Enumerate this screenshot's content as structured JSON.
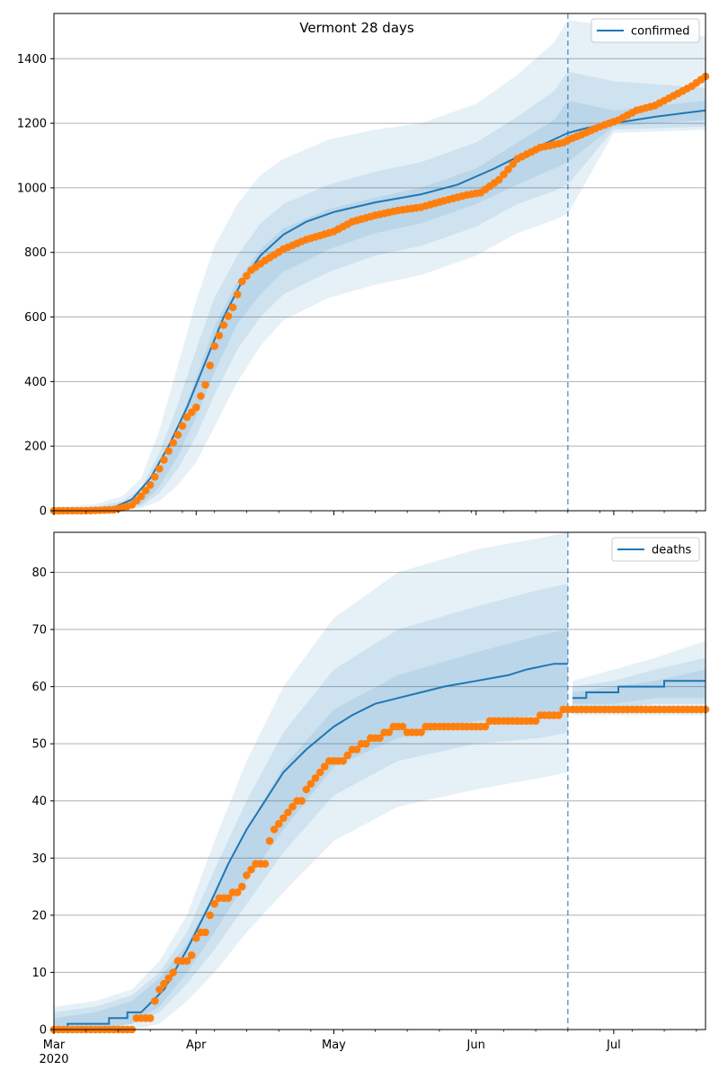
{
  "title": "Vermont 28 days",
  "colors": {
    "model": "#1f77b4",
    "observed": "#ff7f0e",
    "band": "#1f77b4",
    "grid": "#b0b0b0"
  },
  "chart_data": [
    {
      "type": "line",
      "name": "confirmed-panel",
      "title": "Vermont 28 days",
      "legend": {
        "label": "confirmed",
        "placement": "top-right"
      },
      "x_type": "date",
      "xlim": [
        "2020-03-01",
        "2020-07-21"
      ],
      "ylim": [
        0,
        1540
      ],
      "yticks": [
        0,
        200,
        400,
        600,
        800,
        1000,
        1200,
        1400
      ],
      "grid": "horizontal",
      "forecast_start": "2020-06-21",
      "model_line": {
        "dates": [
          "2020-03-01",
          "2020-03-05",
          "2020-03-10",
          "2020-03-14",
          "2020-03-18",
          "2020-03-22",
          "2020-03-26",
          "2020-03-30",
          "2020-04-03",
          "2020-04-07",
          "2020-04-11",
          "2020-04-15",
          "2020-04-20",
          "2020-04-25",
          "2020-05-01",
          "2020-05-10",
          "2020-05-20",
          "2020-05-28",
          "2020-06-05",
          "2020-06-12",
          "2020-06-18",
          "2020-06-21",
          "2020-06-25",
          "2020-07-01",
          "2020-07-10",
          "2020-07-21"
        ],
        "values": [
          0,
          1,
          3,
          10,
          35,
          100,
          200,
          320,
          460,
          600,
          710,
          790,
          855,
          895,
          925,
          955,
          980,
          1010,
          1060,
          1110,
          1150,
          1170,
          1185,
          1200,
          1220,
          1240
        ]
      },
      "bands": [
        {
          "level": "outer",
          "dates": [
            "2020-03-01",
            "2020-03-10",
            "2020-03-16",
            "2020-03-20",
            "2020-03-24",
            "2020-03-28",
            "2020-04-01",
            "2020-04-05",
            "2020-04-10",
            "2020-04-15",
            "2020-04-20",
            "2020-04-30",
            "2020-05-10",
            "2020-05-20",
            "2020-06-01",
            "2020-06-10",
            "2020-06-18",
            "2020-06-21",
            "2020-07-01",
            "2020-07-21"
          ],
          "upper": [
            10,
            20,
            45,
            100,
            250,
            450,
            650,
            820,
            950,
            1040,
            1090,
            1150,
            1180,
            1200,
            1260,
            1350,
            1450,
            1520,
            1500,
            1470
          ],
          "lower": [
            0,
            0,
            2,
            8,
            30,
            80,
            150,
            260,
            400,
            510,
            590,
            660,
            700,
            730,
            790,
            860,
            900,
            920,
            1170,
            1180
          ]
        },
        {
          "level": "middle",
          "dates": [
            "2020-03-01",
            "2020-03-10",
            "2020-03-16",
            "2020-03-20",
            "2020-03-24",
            "2020-03-28",
            "2020-04-01",
            "2020-04-05",
            "2020-04-10",
            "2020-04-15",
            "2020-04-20",
            "2020-04-30",
            "2020-05-10",
            "2020-05-20",
            "2020-06-01",
            "2020-06-10",
            "2020-06-18",
            "2020-06-21",
            "2020-07-01",
            "2020-07-21"
          ],
          "upper": [
            5,
            12,
            30,
            70,
            180,
            330,
            500,
            660,
            790,
            890,
            950,
            1010,
            1050,
            1080,
            1140,
            1220,
            1300,
            1360,
            1330,
            1310
          ],
          "lower": [
            0,
            0,
            4,
            14,
            55,
            130,
            230,
            360,
            500,
            600,
            670,
            740,
            790,
            820,
            880,
            950,
            990,
            1010,
            1180,
            1190
          ]
        },
        {
          "level": "inner",
          "dates": [
            "2020-03-01",
            "2020-03-10",
            "2020-03-16",
            "2020-03-20",
            "2020-03-24",
            "2020-03-28",
            "2020-04-01",
            "2020-04-05",
            "2020-04-10",
            "2020-04-15",
            "2020-04-20",
            "2020-04-30",
            "2020-05-10",
            "2020-05-20",
            "2020-06-01",
            "2020-06-10",
            "2020-06-18",
            "2020-06-21",
            "2020-07-01",
            "2020-07-21"
          ],
          "upper": [
            3,
            8,
            20,
            50,
            130,
            260,
            410,
            570,
            710,
            810,
            875,
            935,
            970,
            1000,
            1060,
            1140,
            1210,
            1270,
            1240,
            1270
          ],
          "lower": [
            0,
            1,
            6,
            20,
            75,
            170,
            290,
            430,
            580,
            670,
            740,
            810,
            860,
            890,
            950,
            1010,
            1060,
            1080,
            1190,
            1210
          ]
        }
      ],
      "observed": {
        "dates": [
          "2020-03-01",
          "2020-03-08",
          "2020-03-14",
          "2020-03-16",
          "2020-03-18",
          "2020-03-20",
          "2020-03-22",
          "2020-03-24",
          "2020-03-26",
          "2020-03-28",
          "2020-03-30",
          "2020-04-01",
          "2020-04-03",
          "2020-04-05",
          "2020-04-07",
          "2020-04-09",
          "2020-04-11",
          "2020-04-13",
          "2020-04-16",
          "2020-04-20",
          "2020-04-25",
          "2020-05-01",
          "2020-05-05",
          "2020-05-10",
          "2020-05-15",
          "2020-05-20",
          "2020-05-25",
          "2020-05-30",
          "2020-06-02",
          "2020-06-06",
          "2020-06-10",
          "2020-06-15",
          "2020-06-20",
          "2020-06-21",
          "2020-06-24",
          "2020-06-28",
          "2020-07-02",
          "2020-07-06",
          "2020-07-10",
          "2020-07-14",
          "2020-07-18",
          "2020-07-21"
        ],
        "values": [
          0,
          0,
          3,
          10,
          18,
          45,
          80,
          130,
          185,
          235,
          290,
          320,
          390,
          510,
          575,
          630,
          710,
          745,
          775,
          810,
          840,
          865,
          895,
          915,
          930,
          940,
          960,
          978,
          985,
          1025,
          1090,
          1125,
          1140,
          1148,
          1165,
          1190,
          1210,
          1240,
          1255,
          1285,
          1315,
          1345
        ]
      }
    },
    {
      "type": "line",
      "name": "deaths-panel",
      "legend": {
        "label": "deaths",
        "placement": "top-right"
      },
      "x_type": "date",
      "xlim": [
        "2020-03-01",
        "2020-07-21"
      ],
      "ylim": [
        0,
        87
      ],
      "yticks": [
        0,
        10,
        20,
        30,
        40,
        50,
        60,
        70,
        80
      ],
      "xticks": [
        "Mar",
        "Apr",
        "May",
        "Jun",
        "Jul"
      ],
      "xtick_dates": [
        "2020-03-01",
        "2020-04-01",
        "2020-05-01",
        "2020-06-01",
        "2020-07-01"
      ],
      "year_label": "2020",
      "grid": "horizontal",
      "forecast_start": "2020-06-21",
      "model_line": {
        "dates": [
          "2020-03-01",
          "2020-03-04",
          "2020-03-04",
          "2020-03-13",
          "2020-03-13",
          "2020-03-17",
          "2020-03-17",
          "2020-03-20",
          "2020-03-25",
          "2020-03-30",
          "2020-04-04",
          "2020-04-08",
          "2020-04-12",
          "2020-04-16",
          "2020-04-20",
          "2020-04-25",
          "2020-05-01",
          "2020-05-05",
          "2020-05-10",
          "2020-05-15",
          "2020-05-20",
          "2020-05-25",
          "2020-06-01",
          "2020-06-08",
          "2020-06-12",
          "2020-06-18",
          "2020-06-21"
        ],
        "values": [
          0,
          0,
          1,
          1,
          2,
          2,
          3,
          3,
          7,
          14,
          22,
          29,
          35,
          40,
          45,
          49,
          53,
          55,
          57,
          58,
          59,
          60,
          61,
          62,
          63,
          64,
          64
        ]
      },
      "model_line_forecast": {
        "dates": [
          "2020-06-22",
          "2020-06-25",
          "2020-06-25",
          "2020-07-02",
          "2020-07-02",
          "2020-07-12",
          "2020-07-12",
          "2020-07-21"
        ],
        "values": [
          58,
          58,
          59,
          59,
          60,
          60,
          61,
          61
        ]
      },
      "bands": [
        {
          "level": "outer",
          "dates": [
            "2020-03-01",
            "2020-03-10",
            "2020-03-18",
            "2020-03-24",
            "2020-03-30",
            "2020-04-05",
            "2020-04-12",
            "2020-04-20",
            "2020-05-01",
            "2020-05-15",
            "2020-06-01",
            "2020-06-15",
            "2020-06-21"
          ],
          "upper": [
            4,
            5,
            7,
            12,
            20,
            33,
            47,
            60,
            72,
            80,
            84,
            86,
            87
          ],
          "lower": [
            0,
            0,
            0,
            1,
            5,
            10,
            17,
            24,
            33,
            39,
            42,
            44,
            45
          ]
        },
        {
          "level": "middle",
          "dates": [
            "2020-03-01",
            "2020-03-10",
            "2020-03-18",
            "2020-03-24",
            "2020-03-30",
            "2020-04-05",
            "2020-04-12",
            "2020-04-20",
            "2020-05-01",
            "2020-05-15",
            "2020-06-01",
            "2020-06-15",
            "2020-06-21"
          ],
          "upper": [
            3,
            4,
            6,
            10,
            17,
            28,
            40,
            52,
            63,
            70,
            74,
            77,
            78
          ],
          "lower": [
            0,
            0,
            1,
            3,
            8,
            14,
            22,
            31,
            41,
            47,
            50,
            51,
            52
          ]
        },
        {
          "level": "inner",
          "dates": [
            "2020-03-01",
            "2020-03-10",
            "2020-03-18",
            "2020-03-24",
            "2020-03-30",
            "2020-04-05",
            "2020-04-12",
            "2020-04-20",
            "2020-05-01",
            "2020-05-15",
            "2020-06-01",
            "2020-06-15",
            "2020-06-21"
          ],
          "upper": [
            2,
            3,
            5,
            9,
            15,
            24,
            35,
            46,
            56,
            62,
            66,
            69,
            70
          ],
          "lower": [
            0,
            0,
            1,
            4,
            10,
            17,
            26,
            35,
            46,
            51,
            54,
            55,
            56
          ]
        },
        {
          "level": "outer-forecast",
          "dates": [
            "2020-06-22",
            "2020-07-01",
            "2020-07-10",
            "2020-07-21"
          ],
          "upper": [
            61,
            63,
            65,
            68
          ],
          "lower": [
            55,
            55,
            55,
            55
          ]
        },
        {
          "level": "middle-forecast",
          "dates": [
            "2020-06-22",
            "2020-07-01",
            "2020-07-10",
            "2020-07-21"
          ],
          "upper": [
            60,
            61,
            63,
            65
          ],
          "lower": [
            56,
            56,
            57,
            57
          ]
        },
        {
          "level": "inner-forecast",
          "dates": [
            "2020-06-22",
            "2020-07-01",
            "2020-07-10",
            "2020-07-21"
          ],
          "upper": [
            59,
            60,
            61,
            63
          ],
          "lower": [
            57,
            57,
            58,
            58
          ]
        }
      ],
      "observed": {
        "dates": [
          "2020-03-01",
          "2020-03-18",
          "2020-03-19",
          "2020-03-22",
          "2020-03-23",
          "2020-03-24",
          "2020-03-25",
          "2020-03-26",
          "2020-03-27",
          "2020-03-28",
          "2020-03-30",
          "2020-03-31",
          "2020-04-01",
          "2020-04-02",
          "2020-04-03",
          "2020-04-04",
          "2020-04-05",
          "2020-04-06",
          "2020-04-08",
          "2020-04-10",
          "2020-04-11",
          "2020-04-12",
          "2020-04-13",
          "2020-04-15",
          "2020-04-16",
          "2020-04-17",
          "2020-04-18",
          "2020-04-21",
          "2020-04-23",
          "2020-04-24",
          "2020-04-26",
          "2020-04-27",
          "2020-04-29",
          "2020-05-01",
          "2020-05-02",
          "2020-05-03",
          "2020-05-05",
          "2020-05-08",
          "2020-05-10",
          "2020-05-15",
          "2020-05-17",
          "2020-05-25",
          "2020-05-28",
          "2020-06-10",
          "2020-06-19",
          "2020-06-21",
          "2020-07-21"
        ],
        "values": [
          0,
          0,
          2,
          2,
          5,
          7,
          8,
          9,
          10,
          12,
          12,
          13,
          16,
          17,
          17,
          20,
          22,
          23,
          23,
          24,
          25,
          27,
          28,
          29,
          29,
          33,
          35,
          38,
          40,
          40,
          43,
          44,
          46,
          47,
          47,
          47,
          49,
          50,
          51,
          53,
          52,
          53,
          53,
          54,
          55,
          56,
          56
        ]
      }
    }
  ]
}
